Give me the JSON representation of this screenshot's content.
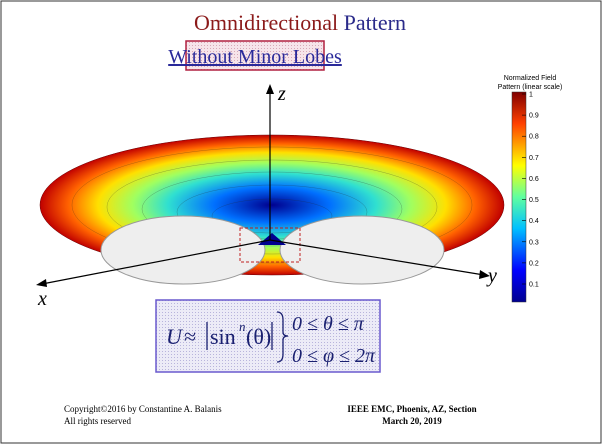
{
  "title": {
    "part1": "Omnidirectional",
    "part2": "Pattern"
  },
  "subtitle": "Without Minor Lobes",
  "axes": {
    "z": "z",
    "x": "x",
    "y": "y"
  },
  "colorbar": {
    "title_line1": "Normalized Field",
    "title_line2": "Pattern (linear scale)",
    "ticks": [
      0.1,
      0.2,
      0.3,
      0.4,
      0.5,
      0.6,
      0.7,
      0.8,
      0.9,
      1
    ]
  },
  "equation": {
    "lhs": "U",
    "approx": "≈",
    "func": "sin",
    "power": "n",
    "arg": "(θ)",
    "range1": "0 ≤ θ ≤ π",
    "range2": "0 ≤ φ ≤ 2π"
  },
  "footer": {
    "left1": "Copyright©2016  by Constantine A. Balanis",
    "left2": "All rights reserved",
    "right1": "IEEE EMC, Phoenix, AZ, Section",
    "right2": "March 20, 2019"
  }
}
